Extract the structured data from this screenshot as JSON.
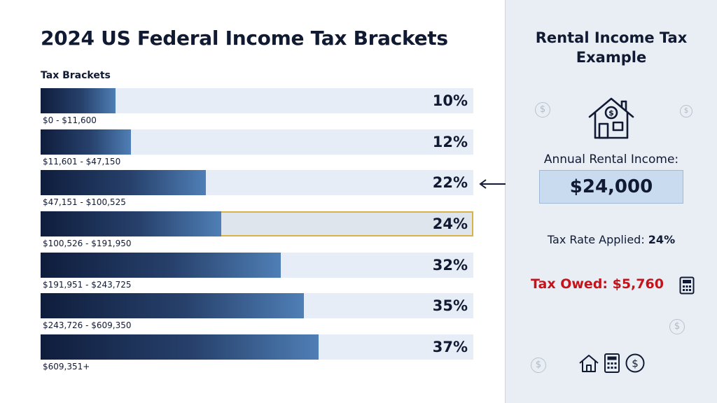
{
  "main_title": "2024 US Federal Income Tax Brackets",
  "chart_data": {
    "type": "bar",
    "orientation": "horizontal",
    "title": "2024 US Federal Income Tax Brackets",
    "section_label": "Tax Brackets",
    "categories": [
      "$0 - $11,600",
      "$11,601 - $47,150",
      "$47,151 - $100,525",
      "$100,526 - $191,950",
      "$191,951 - $243,725",
      "$243,726 - $609,350",
      "$609,351+"
    ],
    "values": [
      10,
      12,
      22,
      24,
      32,
      35,
      37
    ],
    "value_labels": [
      "10%",
      "12%",
      "22%",
      "24%",
      "32%",
      "35%",
      "37%"
    ],
    "xlim": [
      0,
      57.6
    ],
    "highlighted_index": 3,
    "grid": false
  },
  "example": {
    "title_line1": "Rental Income Tax",
    "title_line2": "Example",
    "income_label": "Annual Rental Income:",
    "income_value": "$24,000",
    "rate_label": "Tax Rate Applied:",
    "rate_value": "24%",
    "owed_text": "Tax Owed: $5,760"
  },
  "icons": {
    "house": "house-dollar-icon",
    "calculator": "calculator-icon",
    "coin": "dollar-coin-icon",
    "arrow": "double-arrow-icon",
    "coin_glyph": "$"
  },
  "colors": {
    "bar_dark": "#0f1d3c",
    "bar_light": "#4f7fb6",
    "track": "#e6edf6",
    "highlight_border": "#d9b34a",
    "owed_red": "#c4131a",
    "panel_bg": "#e9eef4"
  }
}
